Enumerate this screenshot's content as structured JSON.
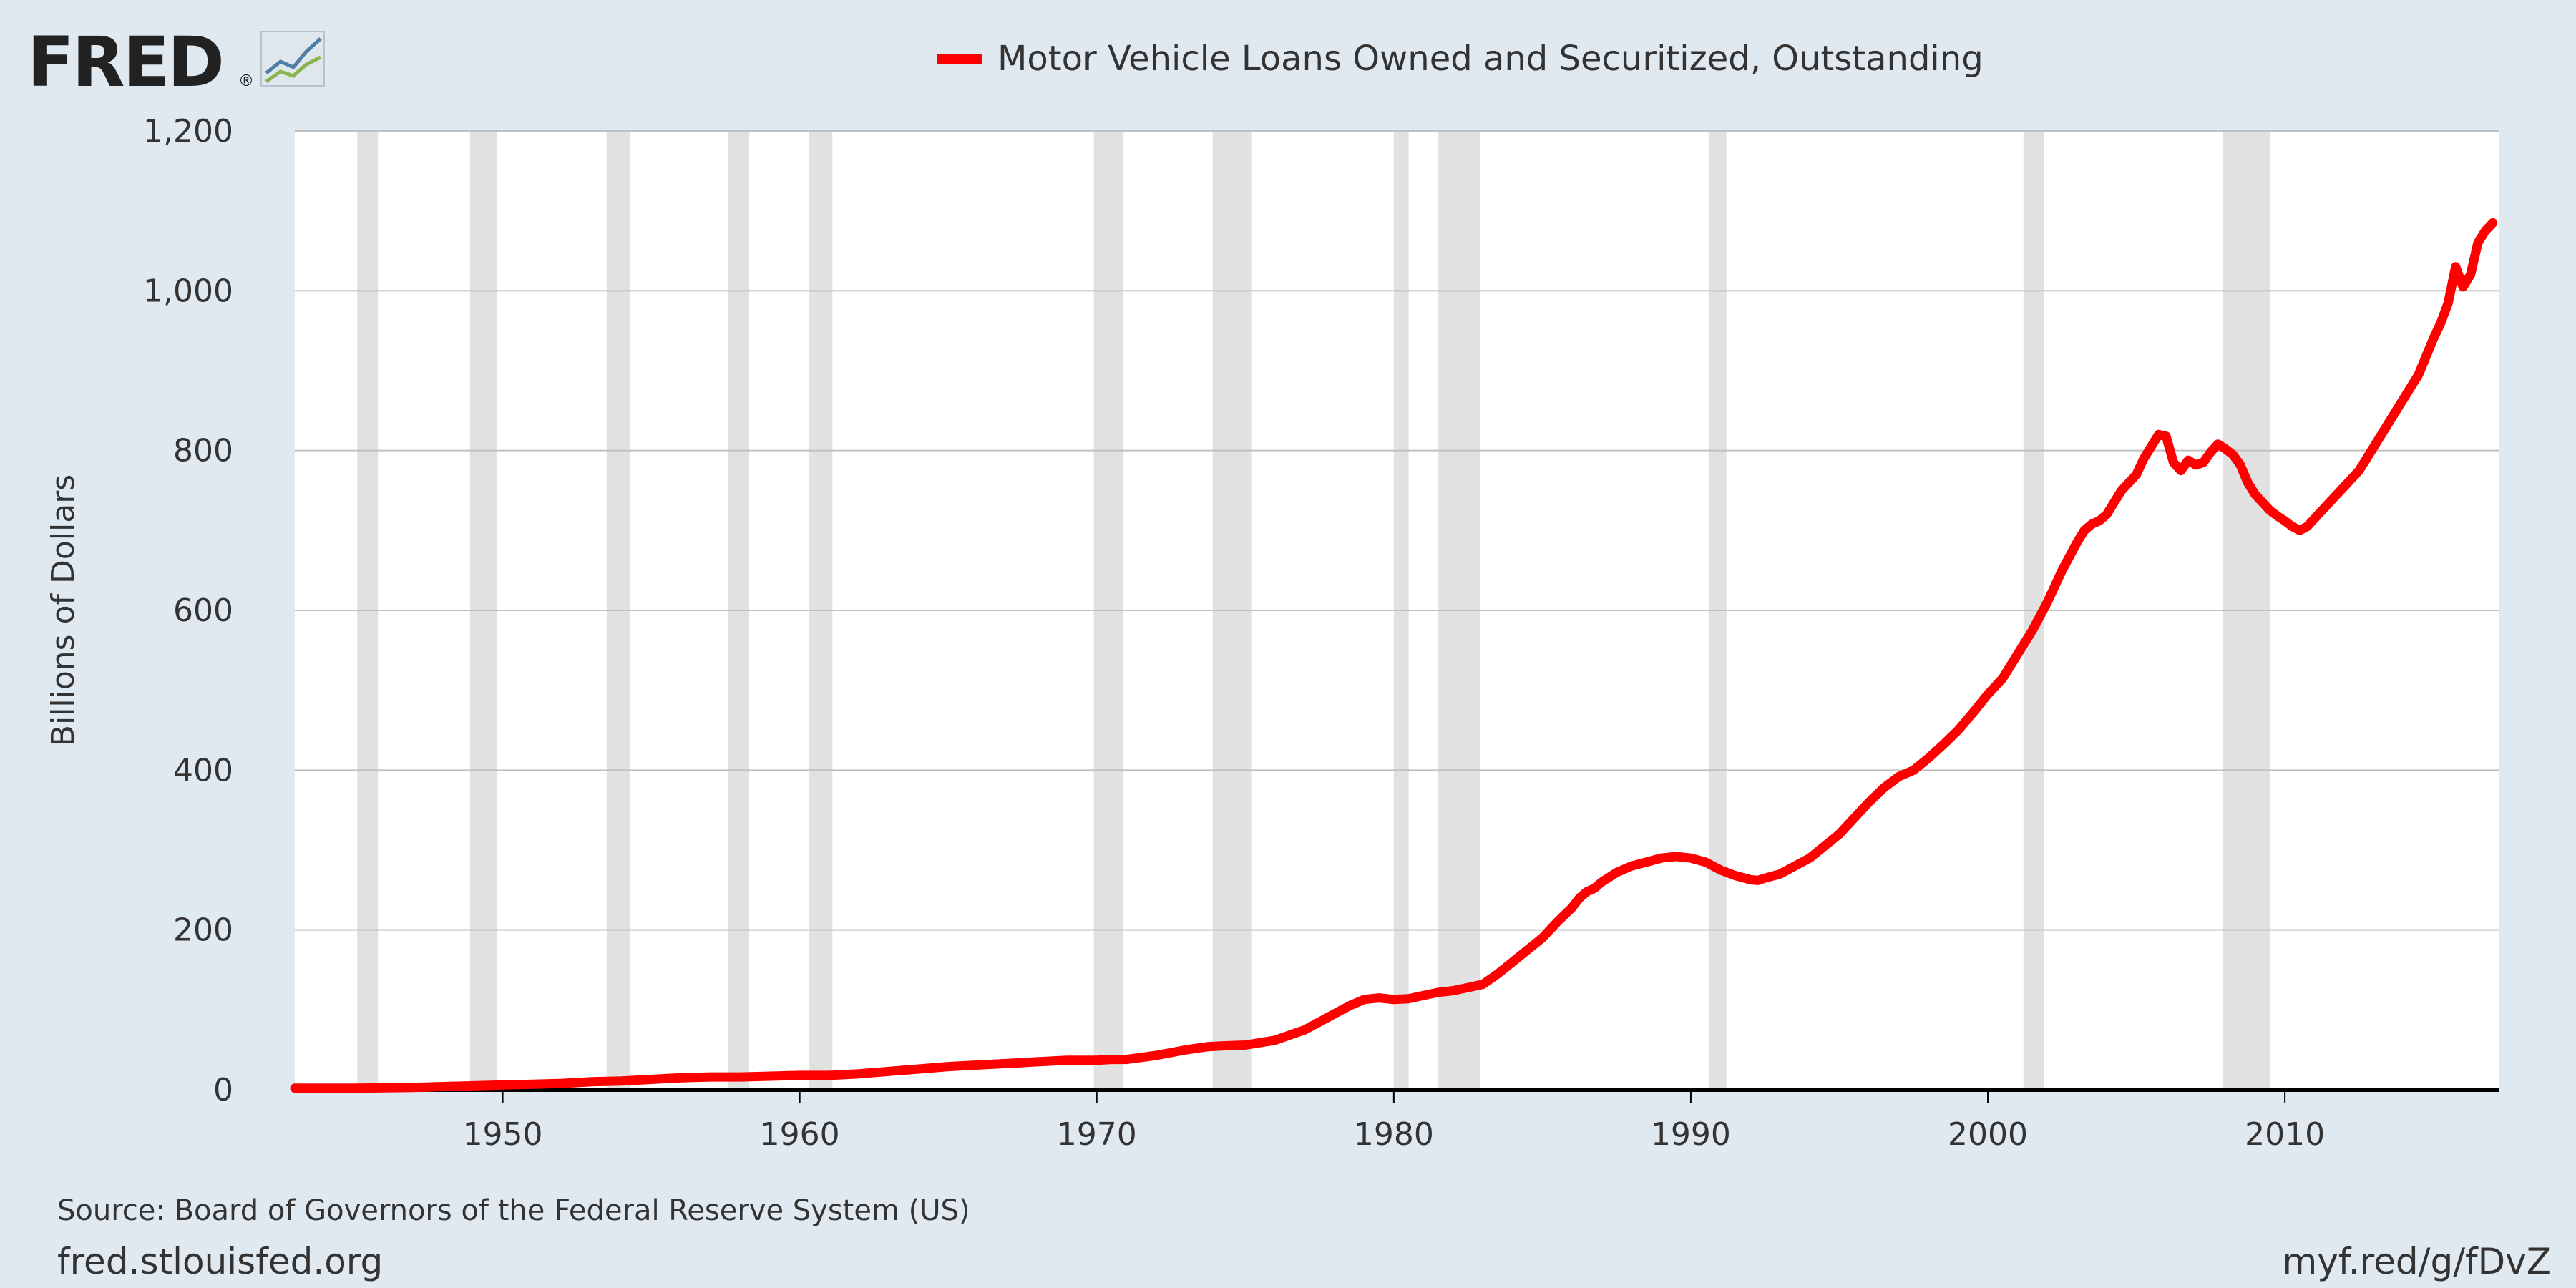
{
  "branding": {
    "logo_text": "FRED",
    "registered_mark": "®",
    "logo_icon": "line-chart-icon"
  },
  "footer": {
    "source": "Source: Board of Governors of the Federal Reserve System (US)",
    "site": "fred.stlouisfed.org",
    "short_url": "myf.red/g/fDvZ"
  },
  "colors": {
    "background": "#e1e9f0",
    "plot_background": "#ffffff",
    "series": "#ff0000",
    "recession": "#e1e1e1",
    "grid": "#c0c0c0",
    "axis": "#000000"
  },
  "chart_data": {
    "type": "line",
    "title": "",
    "xlabel": "",
    "ylabel": "Billions of Dollars",
    "xlim": [
      1943.0,
      2017.2
    ],
    "ylim": [
      0,
      1200
    ],
    "yticks": [
      0,
      200,
      400,
      600,
      800,
      1000,
      1200
    ],
    "ytick_labels": [
      "0",
      "200",
      "400",
      "600",
      "800",
      "1,000",
      "1,200"
    ],
    "xticks": [
      1950,
      1960,
      1970,
      1980,
      1990,
      2000,
      2010
    ],
    "xtick_labels": [
      "1950",
      "1960",
      "1970",
      "1980",
      "1990",
      "2000",
      "2010"
    ],
    "grid": true,
    "legend_position": "top-center",
    "recessions": [
      [
        1945.1,
        1945.8
      ],
      [
        1948.9,
        1949.8
      ],
      [
        1953.5,
        1954.3
      ],
      [
        1957.6,
        1958.3
      ],
      [
        1960.3,
        1961.1
      ],
      [
        1969.9,
        1970.9
      ],
      [
        1973.9,
        1975.2
      ],
      [
        1980.0,
        1980.5
      ],
      [
        1981.5,
        1982.9
      ],
      [
        1990.6,
        1991.2
      ],
      [
        2001.2,
        2001.9
      ],
      [
        2007.9,
        2009.5
      ]
    ],
    "series": [
      {
        "name": "Motor Vehicle Loans Owned and Securitized, Outstanding",
        "x": [
          1943.0,
          1945.0,
          1947.0,
          1948.0,
          1949.0,
          1950.0,
          1951.0,
          1952.0,
          1953.0,
          1954.0,
          1955.0,
          1956.0,
          1957.0,
          1958.0,
          1959.0,
          1960.0,
          1961.0,
          1962.0,
          1963.0,
          1964.0,
          1965.0,
          1966.0,
          1967.0,
          1968.0,
          1969.0,
          1970.0,
          1970.5,
          1971.0,
          1972.0,
          1973.0,
          1973.75,
          1974.25,
          1975.0,
          1976.0,
          1977.0,
          1977.5,
          1978.0,
          1978.5,
          1979.0,
          1979.5,
          1980.0,
          1980.5,
          1981.0,
          1981.5,
          1982.0,
          1982.5,
          1983.0,
          1983.5,
          1984.0,
          1984.5,
          1985.0,
          1985.5,
          1986.0,
          1986.25,
          1986.5,
          1986.75,
          1987.0,
          1987.5,
          1988.0,
          1988.5,
          1989.0,
          1989.5,
          1990.0,
          1990.5,
          1991.0,
          1991.5,
          1992.0,
          1992.25,
          1992.5,
          1993.0,
          1993.5,
          1994.0,
          1994.5,
          1995.0,
          1995.5,
          1996.0,
          1996.5,
          1997.0,
          1997.5,
          1998.0,
          1998.5,
          1999.0,
          1999.5,
          2000.0,
          2000.5,
          2001.0,
          2001.5,
          2002.0,
          2002.5,
          2003.0,
          2003.25,
          2003.5,
          2003.75,
          2004.0,
          2004.5,
          2005.0,
          2005.25,
          2005.5,
          2005.75,
          2006.0,
          2006.25,
          2006.5,
          2006.75,
          2007.0,
          2007.25,
          2007.5,
          2007.75,
          2008.0,
          2008.25,
          2008.5,
          2008.75,
          2009.0,
          2009.25,
          2009.5,
          2009.75,
          2010.0,
          2010.25,
          2010.5,
          2010.75,
          2011.0,
          2011.25,
          2011.5,
          2011.75,
          2012.0,
          2012.5,
          2013.0,
          2013.5,
          2014.0,
          2014.5,
          2015.0,
          2015.25,
          2015.5,
          2015.75,
          2016.0,
          2016.25,
          2016.5,
          2016.75,
          2017.0
        ],
        "values": [
          2,
          2,
          3,
          4,
          5,
          6,
          7,
          8,
          10,
          11,
          13,
          15,
          16,
          16,
          17,
          18,
          18,
          20,
          23,
          26,
          29,
          31,
          33,
          35,
          37,
          37,
          38,
          38,
          43,
          50,
          54,
          55,
          56,
          62,
          75,
          85,
          95,
          105,
          113,
          115,
          113,
          114,
          118,
          122,
          124,
          128,
          132,
          145,
          160,
          175,
          190,
          210,
          228,
          240,
          248,
          252,
          260,
          272,
          280,
          285,
          290,
          292,
          290,
          285,
          275,
          268,
          263,
          262,
          265,
          270,
          280,
          290,
          305,
          320,
          340,
          360,
          378,
          392,
          400,
          415,
          432,
          450,
          472,
          495,
          515,
          545,
          575,
          610,
          650,
          685,
          700,
          708,
          712,
          720,
          750,
          770,
          790,
          805,
          820,
          818,
          785,
          775,
          788,
          782,
          785,
          798,
          808,
          802,
          795,
          782,
          760,
          745,
          735,
          725,
          718,
          712,
          705,
          700,
          705,
          715,
          725,
          735,
          745,
          755,
          775,
          805,
          835,
          865,
          895,
          940,
          960,
          985,
          1030,
          1005,
          1020,
          1060,
          1075,
          1085
        ]
      }
    ]
  }
}
